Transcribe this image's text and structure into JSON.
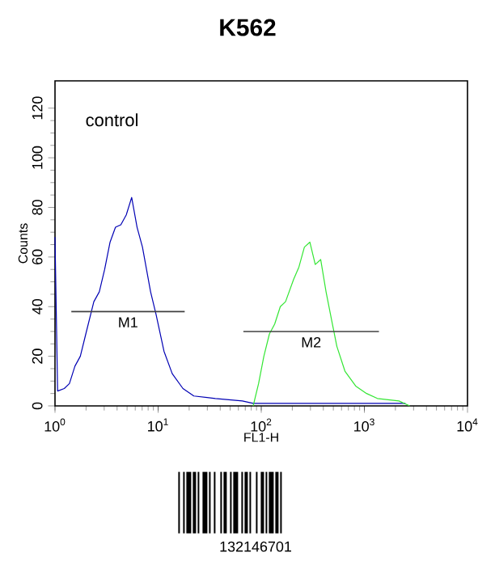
{
  "chart_data": {
    "type": "line",
    "title": "K562",
    "xlabel": "FL1-H",
    "ylabel": "Counts",
    "log": "x",
    "xlim": [
      1,
      10000
    ],
    "ylim": [
      0,
      131
    ],
    "xticks": [
      {
        "value": 1,
        "label": "10$^{0}$"
      },
      {
        "value": 10,
        "label": "10$^{1}$"
      },
      {
        "value": 100,
        "label": "10$^{2}$"
      },
      {
        "value": 1000,
        "label": "10$^{3}$"
      },
      {
        "value": 10000,
        "label": "10$^{4}$"
      }
    ],
    "yticks": [
      0,
      20,
      40,
      60,
      80,
      100,
      120
    ],
    "series": [
      {
        "color": "#0000b4",
        "x": [
          1,
          1.06,
          1.23,
          1.38,
          1.56,
          1.76,
          1.99,
          2.38,
          2.69,
          3.03,
          3.42,
          3.86,
          4.35,
          4.91,
          5.54,
          6.25,
          7.05,
          8.45,
          9.53,
          11.4,
          13.7,
          17.4,
          22.2,
          35.9,
          65.6,
          83.5,
          400,
          2500
        ],
        "values": [
          68,
          6,
          7,
          9,
          16,
          20,
          29,
          42,
          46,
          55,
          66,
          72,
          73,
          77,
          84,
          72,
          64,
          46,
          37,
          22,
          13,
          7,
          4,
          3,
          2,
          1,
          1,
          1
        ]
      },
      {
        "color": "#33e633",
        "x": [
          83.5,
          94.2,
          106,
          120,
          135,
          153,
          172,
          206,
          232,
          262,
          296,
          334,
          377,
          425,
          479,
          541,
          648,
          824,
          1050,
          1336,
          2163,
          2754
        ],
        "values": [
          0,
          9,
          20,
          29,
          33,
          40,
          42,
          51,
          56,
          64,
          66,
          57,
          59,
          46,
          35,
          24,
          14,
          8,
          5,
          3,
          2,
          0
        ]
      },
      {
        "name": "M1",
        "color": "#404040",
        "x": [
          1.44,
          18.1
        ],
        "values": [
          38,
          38
        ]
      },
      {
        "name": "M2",
        "color": "#404040",
        "x": [
          67.1,
          1384
        ],
        "values": [
          30,
          30
        ]
      }
    ],
    "annotations": [
      "control",
      "132146701"
    ]
  }
}
